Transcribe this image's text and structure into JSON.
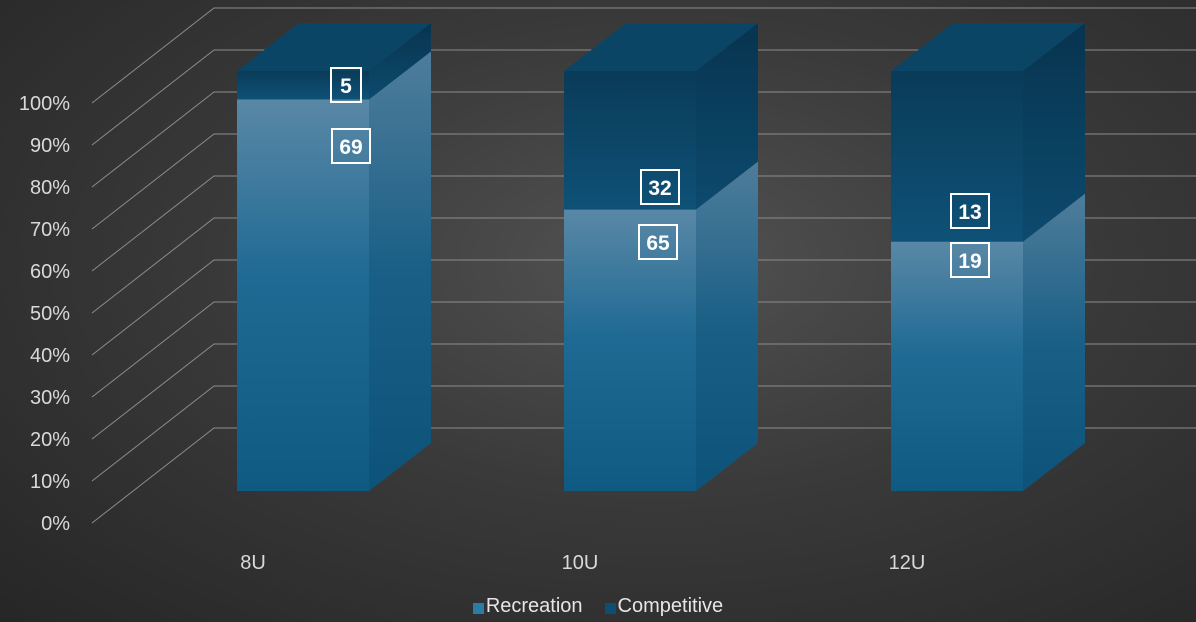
{
  "chart_data": {
    "type": "bar",
    "stacked": "percent",
    "style": "3d",
    "categories": [
      "8U",
      "10U",
      "12U"
    ],
    "series": [
      {
        "name": "Recreation",
        "values": [
          69,
          65,
          19
        ],
        "color": "#2a7ba6"
      },
      {
        "name": "Competitive",
        "values": [
          5,
          32,
          13
        ],
        "color": "#0e4e73"
      }
    ],
    "y_ticks": [
      "0%",
      "10%",
      "20%",
      "30%",
      "40%",
      "50%",
      "60%",
      "70%",
      "80%",
      "90%",
      "100%"
    ],
    "ylim": [
      0,
      100
    ],
    "grid": true,
    "legend_position": "bottom"
  },
  "legend": {
    "recreation_label": "Recreation",
    "competitive_label": "Competitive"
  }
}
